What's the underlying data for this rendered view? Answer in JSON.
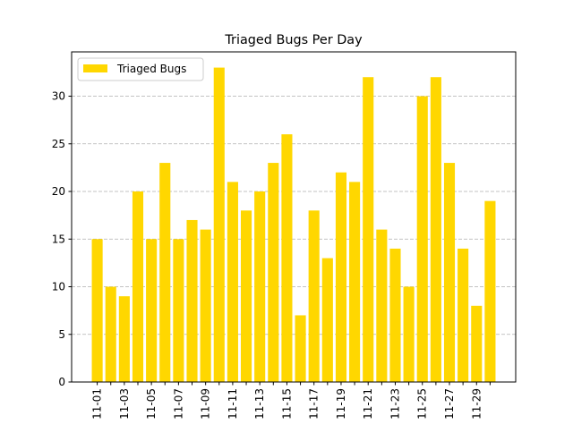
{
  "chart_data": {
    "type": "bar",
    "title": "Triaged Bugs Per Day",
    "xlabel": "",
    "ylabel": "",
    "categories": [
      "11-01",
      "11-02",
      "11-03",
      "11-04",
      "11-05",
      "11-06",
      "11-07",
      "11-08",
      "11-09",
      "11-10",
      "11-11",
      "11-12",
      "11-13",
      "11-14",
      "11-15",
      "11-16",
      "11-17",
      "11-18",
      "11-19",
      "11-20",
      "11-21",
      "11-22",
      "11-23",
      "11-24",
      "11-25",
      "11-26",
      "11-27",
      "11-28",
      "11-29",
      "11-30"
    ],
    "tick_labels": [
      "11-01",
      "11-03",
      "11-05",
      "11-07",
      "11-09",
      "11-11",
      "11-13",
      "11-15",
      "11-17",
      "11-19",
      "11-21",
      "11-23",
      "11-25",
      "11-27",
      "11-29"
    ],
    "series": [
      {
        "name": "Triaged Bugs",
        "color": "#FFD700",
        "values": [
          15,
          10,
          9,
          20,
          15,
          23,
          15,
          17,
          16,
          33,
          21,
          18,
          20,
          23,
          26,
          7,
          18,
          13,
          22,
          21,
          32,
          16,
          14,
          10,
          30,
          32,
          23,
          14,
          8,
          19
        ]
      }
    ],
    "yticks": [
      0,
      5,
      10,
      15,
      20,
      25,
      30
    ],
    "ylim": [
      0,
      34.65
    ],
    "xlim": [
      -1.89,
      30.89
    ],
    "grid": {
      "axis": "y",
      "style": "dashed"
    },
    "legend": {
      "placement": "upper-left",
      "entries": [
        "Triaged Bugs"
      ]
    }
  }
}
